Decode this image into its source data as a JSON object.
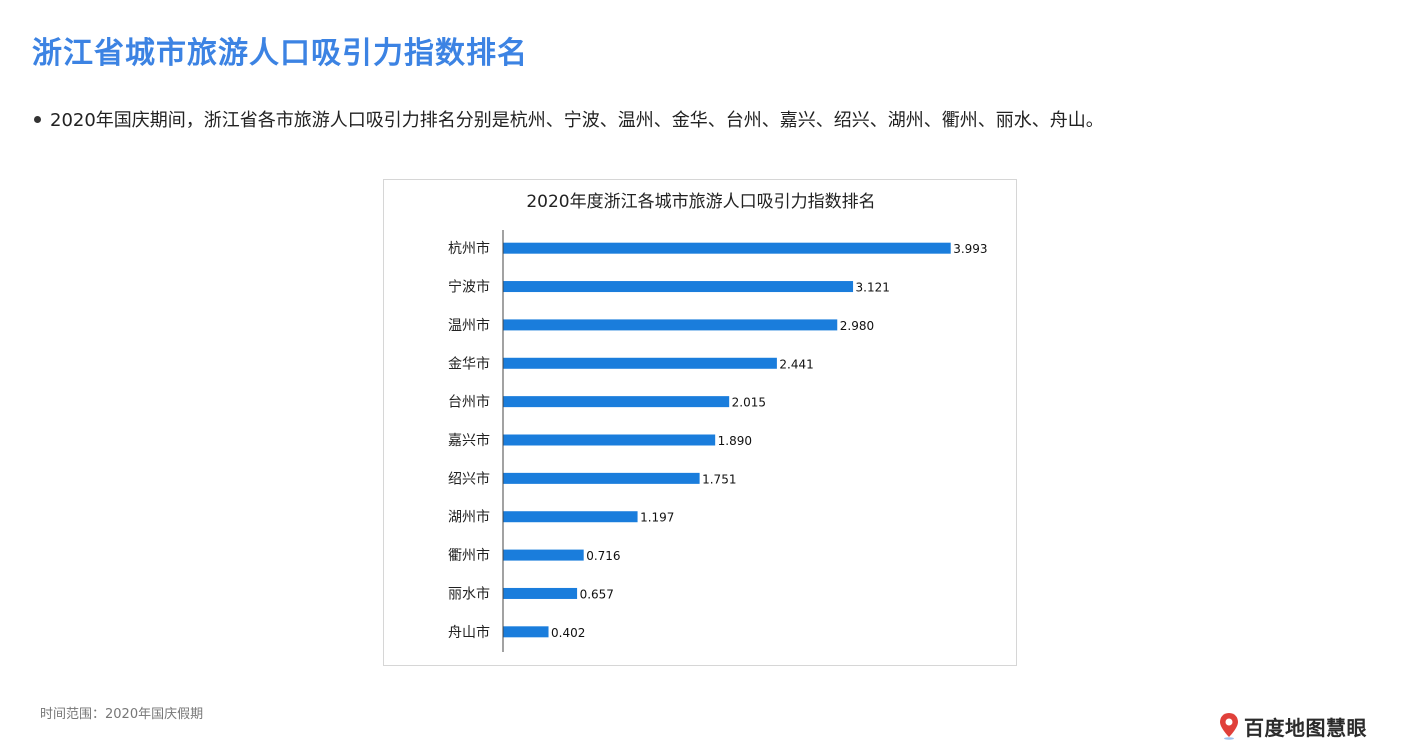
{
  "page": {
    "title": "浙江省城市旅游人口吸引力指数排名",
    "bullet": "2020年国庆期间，浙江省各市旅游人口吸引力排名分别是杭州、宁波、温州、金华、台州、嘉兴、绍兴、湖州、衢州、丽水、舟山。",
    "footnote": "时间范围：2020年国庆假期",
    "logo_text": "百度地图慧眼"
  },
  "colors": {
    "title": "#3c83e3",
    "bar": "#1a7ddc",
    "logo_pin": "#e0403a"
  },
  "chart_data": {
    "type": "bar",
    "orientation": "horizontal",
    "title": "2020年度浙江各城市旅游人口吸引力指数排名",
    "categories": [
      "杭州市",
      "宁波市",
      "温州市",
      "金华市",
      "台州市",
      "嘉兴市",
      "绍兴市",
      "湖州市",
      "衢州市",
      "丽水市",
      "舟山市"
    ],
    "values": [
      3.993,
      3.121,
      2.98,
      2.441,
      2.015,
      1.89,
      1.751,
      1.197,
      0.716,
      0.657,
      0.402
    ],
    "value_labels": [
      "3.993",
      "3.121",
      "2.980",
      "2.441",
      "2.015",
      "1.890",
      "1.751",
      "1.197",
      "0.716",
      "0.657",
      "0.402"
    ],
    "xlim": [
      0,
      4
    ],
    "grid": false,
    "legend": "none"
  }
}
